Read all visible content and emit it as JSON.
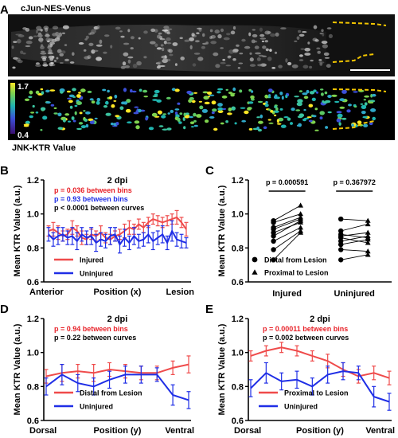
{
  "figure": {
    "panel_A": {
      "letter": "A",
      "top_label": "cJun-NES-Venus",
      "colorbar_max": "1.7",
      "colorbar_min": "0.4",
      "bottom_label": "JNK-KTR Value"
    },
    "panel_B": {
      "letter": "B"
    },
    "panel_C": {
      "letter": "C"
    },
    "panel_D": {
      "letter": "D"
    },
    "panel_E": {
      "letter": "E"
    }
  },
  "colors": {
    "injured": "#ef4b4b",
    "uninjured": "#1f2ee6",
    "red_text": "#e8232a",
    "blue_text": "#1f2ee6"
  },
  "chart_data": [
    {
      "panel": "B",
      "type": "line",
      "title": "2 dpi",
      "ylabel": "Mean KTR Value (a.u.)",
      "xlabel": "Position (x)",
      "x_left_label": "Anterior",
      "x_right_label": "Lesion",
      "ylim": [
        0.6,
        1.2
      ],
      "yticks": [
        "0.6",
        "0.8",
        "1.0",
        "1.2"
      ],
      "annotations": [
        {
          "text": "p = 0.036 between bins",
          "color": "red"
        },
        {
          "text": "p = 0.93 between bins",
          "color": "blue"
        },
        {
          "text": "p < 0.0001 between curves",
          "color": "black"
        }
      ],
      "x": [
        1,
        2,
        3,
        4,
        5,
        6,
        7,
        8,
        9,
        10,
        11,
        12,
        13,
        14,
        15,
        16,
        17,
        18,
        19,
        20,
        21,
        22,
        23,
        24,
        25,
        26,
        27,
        28,
        29,
        30
      ],
      "series": [
        {
          "name": "Injured",
          "color": "#ef4b4b",
          "values": [
            0.9,
            0.91,
            0.89,
            0.87,
            0.88,
            0.92,
            0.9,
            0.86,
            0.85,
            0.88,
            0.87,
            0.89,
            0.86,
            0.85,
            0.87,
            0.88,
            0.9,
            0.92,
            0.91,
            0.94,
            0.92,
            0.95,
            0.97,
            0.96,
            0.95,
            0.96,
            0.97,
            0.98,
            0.95,
            0.91
          ],
          "err": [
            0.03,
            0.04,
            0.04,
            0.03,
            0.03,
            0.04,
            0.03,
            0.04,
            0.03,
            0.03,
            0.03,
            0.04,
            0.03,
            0.03,
            0.03,
            0.03,
            0.04,
            0.04,
            0.03,
            0.03,
            0.03,
            0.03,
            0.03,
            0.03,
            0.03,
            0.03,
            0.03,
            0.04,
            0.03,
            0.04
          ]
        },
        {
          "name": "Uninjured",
          "color": "#1f2ee6",
          "values": [
            0.88,
            0.85,
            0.87,
            0.88,
            0.86,
            0.87,
            0.84,
            0.88,
            0.86,
            0.87,
            0.83,
            0.85,
            0.84,
            0.87,
            0.88,
            0.82,
            0.86,
            0.83,
            0.87,
            0.84,
            0.85,
            0.88,
            0.84,
            0.86,
            0.88,
            0.83,
            0.9,
            0.85,
            0.84,
            0.83
          ],
          "err": [
            0.04,
            0.04,
            0.05,
            0.04,
            0.04,
            0.05,
            0.05,
            0.04,
            0.04,
            0.05,
            0.05,
            0.04,
            0.04,
            0.05,
            0.04,
            0.05,
            0.05,
            0.04,
            0.05,
            0.04,
            0.04,
            0.05,
            0.05,
            0.04,
            0.05,
            0.04,
            0.06,
            0.04,
            0.04,
            0.03
          ]
        }
      ]
    },
    {
      "panel": "C",
      "type": "scatter",
      "ylabel": "Mean KTR Value (a.u.)",
      "ylim": [
        0.6,
        1.2
      ],
      "yticks": [
        "0.6",
        "0.8",
        "1.0",
        "1.2"
      ],
      "categories": [
        "Injured",
        "Uninjured"
      ],
      "annotations": [
        {
          "text": "p = 0.000591",
          "group": "Injured"
        },
        {
          "text": "p = 0.367972",
          "group": "Uninjured"
        }
      ],
      "legend": [
        {
          "name": "Distal from Lesion",
          "marker": "circle"
        },
        {
          "name": "Proximal to Lesion",
          "marker": "triangle"
        }
      ],
      "pairs": [
        {
          "group": "Injured",
          "distal": [
            0.96,
            0.95,
            0.92,
            0.91,
            0.89,
            0.87,
            0.84,
            0.79,
            0.73
          ],
          "proximal": [
            1.05,
            1.0,
            0.98,
            0.97,
            0.95,
            0.96,
            0.92,
            0.9,
            0.89
          ]
        },
        {
          "group": "Uninjured",
          "distal": [
            0.97,
            0.9,
            0.88,
            0.87,
            0.86,
            0.84,
            0.82,
            0.79,
            0.73
          ],
          "proximal": [
            0.96,
            0.94,
            0.86,
            0.89,
            0.83,
            0.87,
            0.85,
            0.78,
            0.76
          ]
        }
      ]
    },
    {
      "panel": "D",
      "type": "line",
      "title": "2 dpi",
      "ylabel": "Mean KTR Value (a.u.)",
      "xlabel": "Position (y)",
      "x_left_label": "Dorsal",
      "x_right_label": "Ventral",
      "ylim": [
        0.6,
        1.2
      ],
      "yticks": [
        "0.6",
        "0.8",
        "1.0",
        "1.2"
      ],
      "annotations": [
        {
          "text": "p = 0.94 between bins",
          "color": "red"
        },
        {
          "text": "p = 0.22 between curves",
          "color": "black"
        }
      ],
      "x": [
        1,
        2,
        3,
        4,
        5,
        6,
        7,
        8,
        9,
        10
      ],
      "series": [
        {
          "name": "Distal from Lesion",
          "color": "#ef4b4b",
          "values": [
            0.86,
            0.88,
            0.89,
            0.88,
            0.9,
            0.89,
            0.88,
            0.88,
            0.91,
            0.93
          ],
          "err": [
            0.04,
            0.05,
            0.04,
            0.05,
            0.04,
            0.04,
            0.04,
            0.04,
            0.04,
            0.05
          ]
        },
        {
          "name": "Uninjured",
          "color": "#1f2ee6",
          "values": [
            0.8,
            0.87,
            0.82,
            0.8,
            0.84,
            0.87,
            0.87,
            0.87,
            0.75,
            0.72
          ],
          "err": [
            0.05,
            0.06,
            0.05,
            0.05,
            0.05,
            0.05,
            0.05,
            0.04,
            0.06,
            0.05
          ]
        }
      ]
    },
    {
      "panel": "E",
      "type": "line",
      "title": "2 dpi",
      "ylabel": "Mean KTR Value (a.u.)",
      "xlabel": "Position (y)",
      "x_left_label": "Dorsal",
      "x_right_label": "Ventral",
      "ylim": [
        0.6,
        1.2
      ],
      "yticks": [
        "0.6",
        "0.8",
        "1.0",
        "1.2"
      ],
      "annotations": [
        {
          "text": "p = 0.00011 between bins",
          "color": "red"
        },
        {
          "text": "p = 0.002 between curves",
          "color": "black"
        }
      ],
      "x": [
        1,
        2,
        3,
        4,
        5,
        6,
        7,
        8,
        9,
        10
      ],
      "series": [
        {
          "name": "Proximal to Lesion",
          "color": "#ef4b4b",
          "values": [
            0.98,
            1.01,
            1.03,
            1.01,
            0.98,
            0.95,
            0.9,
            0.86,
            0.88,
            0.85
          ],
          "err": [
            0.03,
            0.03,
            0.03,
            0.03,
            0.03,
            0.04,
            0.04,
            0.04,
            0.04,
            0.04
          ]
        },
        {
          "name": "Uninjured",
          "color": "#1f2ee6",
          "values": [
            0.79,
            0.88,
            0.83,
            0.84,
            0.8,
            0.87,
            0.89,
            0.88,
            0.74,
            0.71
          ],
          "err": [
            0.05,
            0.06,
            0.05,
            0.05,
            0.05,
            0.05,
            0.05,
            0.04,
            0.06,
            0.05
          ]
        }
      ]
    }
  ]
}
